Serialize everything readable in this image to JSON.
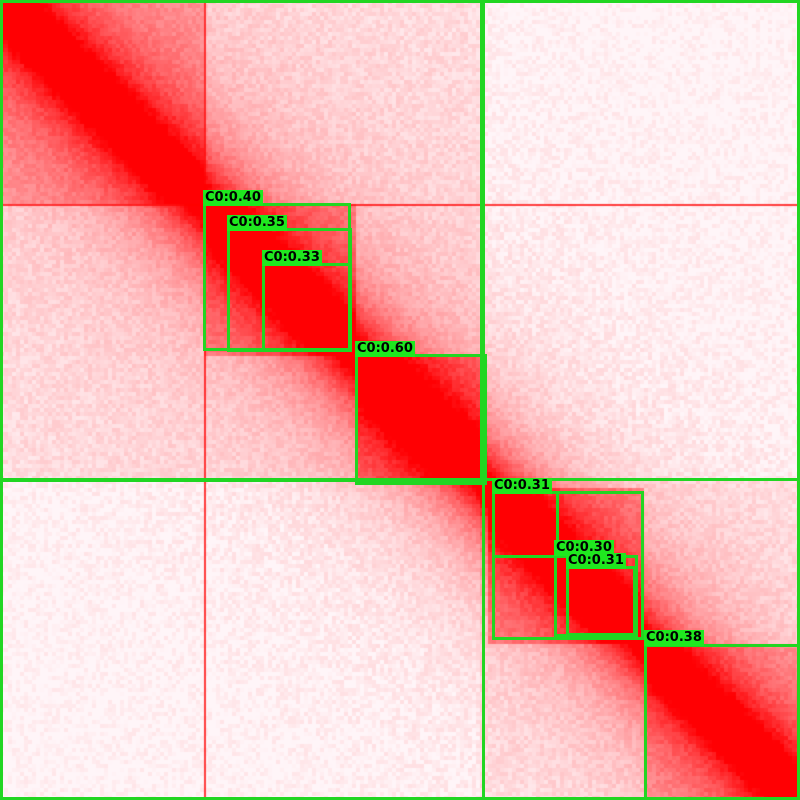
{
  "image": {
    "colors": {
      "background": "#fdf3f4",
      "signal": "#ff0000",
      "box": "#22d622",
      "label_bg": "#1fe81f",
      "label_text": "#000000"
    }
  },
  "detections": [
    {
      "label": "C0:0.40"
    },
    {
      "label": "C0:0.35"
    },
    {
      "label": "C0:0.33"
    },
    {
      "label": "C0:0.60"
    },
    {
      "label": "C0:0.31"
    },
    {
      "label": "C0:0.30"
    },
    {
      "label": "C0:0.31"
    },
    {
      "label": "C0:0.38"
    }
  ]
}
